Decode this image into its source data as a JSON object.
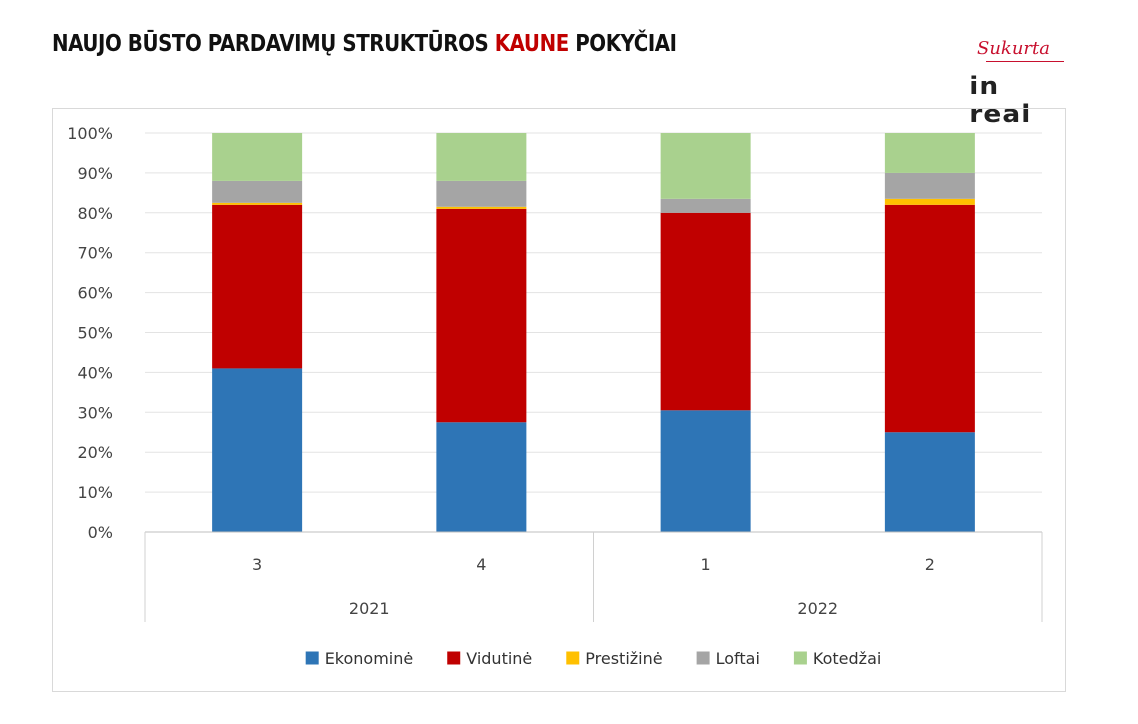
{
  "title": {
    "prefix": "NAUJO BŪSTO PARDAVIMŲ STRUKTŪROS ",
    "highlight": "KAUNE",
    "suffix": " POKYČIAI"
  },
  "logo": {
    "signature": "Sukurta",
    "brand": "in real"
  },
  "chart_data": {
    "type": "bar",
    "stacked": true,
    "categories": [
      "3",
      "4",
      "1",
      "2"
    ],
    "groups": [
      {
        "label": "2021",
        "categories": [
          "3",
          "4"
        ]
      },
      {
        "label": "2022",
        "categories": [
          "1",
          "2"
        ]
      }
    ],
    "series": [
      {
        "name": "Ekonominė",
        "color": "#2e75b6",
        "values": [
          41,
          27.5,
          30.5,
          25
        ]
      },
      {
        "name": "Vidutinė",
        "color": "#c00000",
        "values": [
          41,
          53.5,
          49.5,
          57
        ]
      },
      {
        "name": "Prestižinė",
        "color": "#ffc000",
        "values": [
          0.5,
          0.5,
          0,
          1.5
        ]
      },
      {
        "name": "Loftai",
        "color": "#a5a5a5",
        "values": [
          5.5,
          6.5,
          3.5,
          6.5
        ]
      },
      {
        "name": "Kotedžai",
        "color": "#a9d18e",
        "values": [
          12,
          12,
          16.5,
          10
        ]
      }
    ],
    "yticks": [
      "0%",
      "10%",
      "20%",
      "30%",
      "40%",
      "50%",
      "60%",
      "70%",
      "80%",
      "90%",
      "100%"
    ],
    "ylim": [
      0,
      100
    ],
    "grid": true,
    "legend_position": "bottom"
  }
}
